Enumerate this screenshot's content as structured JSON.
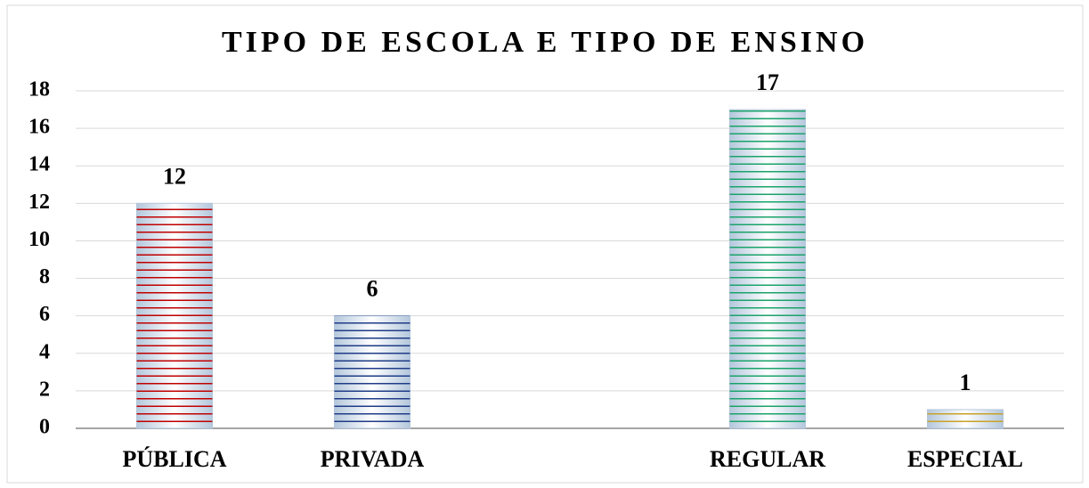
{
  "chart_data": {
    "type": "bar",
    "title": "TIPO DE ESCOLA E TIPO DE ENSINO",
    "categories": [
      "PÚBLICA",
      "PRIVADA",
      null,
      "REGULAR",
      "ESPECIAL"
    ],
    "values": [
      12,
      6,
      null,
      17,
      1
    ],
    "colors": [
      "#c00000",
      "#1f3c88",
      null,
      "#1aa36a",
      "#c9a227"
    ],
    "ylim": [
      0,
      18
    ],
    "yticks": [
      0,
      2,
      4,
      6,
      8,
      10,
      12,
      14,
      16,
      18
    ],
    "grid": true
  }
}
